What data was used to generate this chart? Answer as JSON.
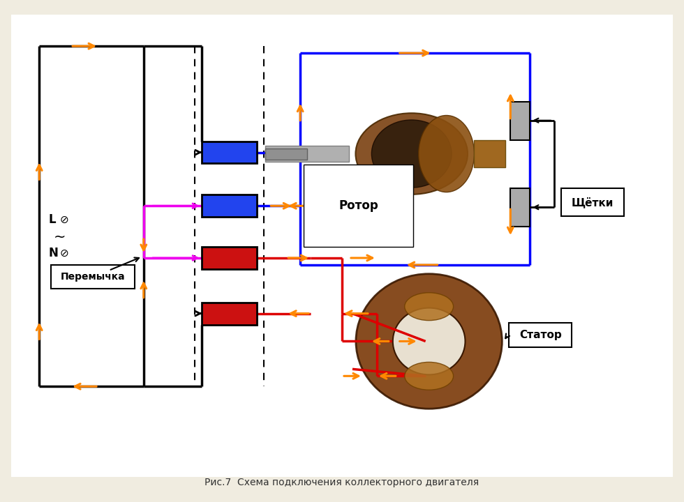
{
  "bg_color": "#f0ece0",
  "white": "#ffffff",
  "blue": "#0000ff",
  "red": "#dd0000",
  "orange": "#ff8800",
  "magenta": "#ee00ee",
  "black": "#000000",
  "gray_brush": "#aaaaaa",
  "coil_blue": "#2244ee",
  "coil_red": "#cc1111",
  "title": "Рис.7  Схема подключения коллекторного двигателя",
  "lbl_rotor": "Ротор",
  "lbl_brushes": "Щётки",
  "lbl_stator": "Статор",
  "lbl_jumper": "Перемычка",
  "lbl_L": "L",
  "lbl_N": "N",
  "lbl_ac": "~"
}
